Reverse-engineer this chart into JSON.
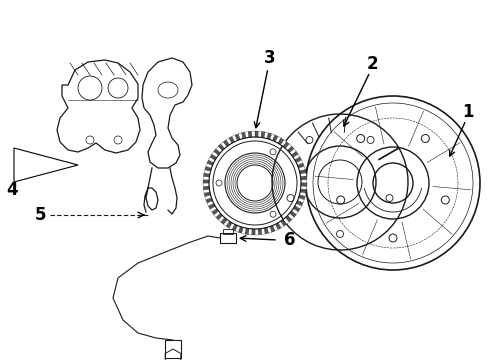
{
  "bg_color": "#ffffff",
  "line_color": "#1a1a1a",
  "label_color": "#000000",
  "figsize": [
    4.9,
    3.6
  ],
  "dpi": 100,
  "label_fontsize": 12
}
